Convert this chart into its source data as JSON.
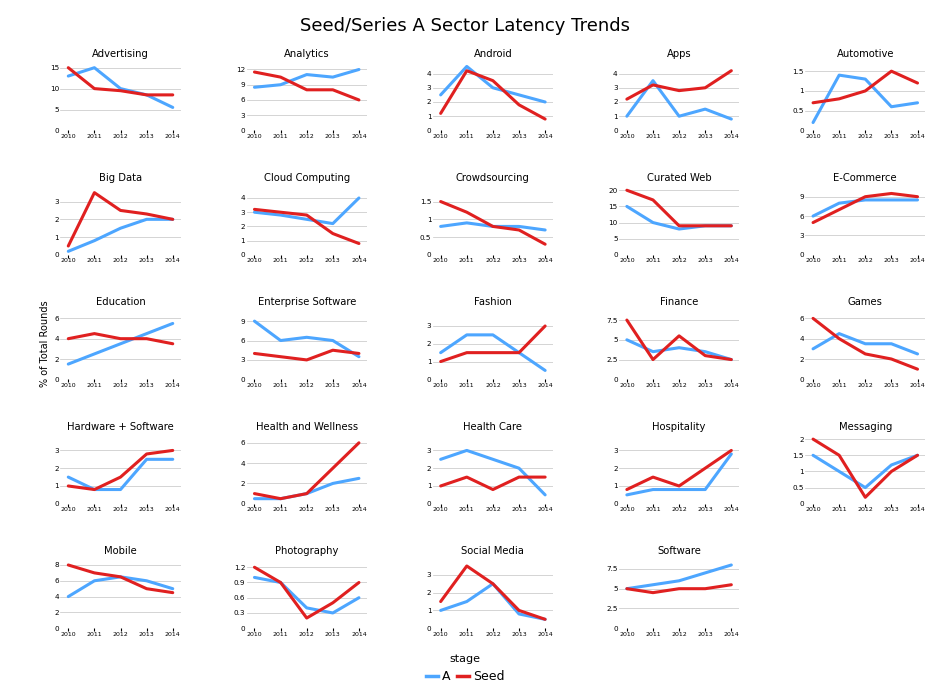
{
  "title": "Seed/Series A Sector Latency Trends",
  "years": [
    2010,
    2011,
    2012,
    2013,
    2014
  ],
  "ylabel": "% of Total Rounds",
  "legend_label_A": "A",
  "legend_label_Seed": "Seed",
  "color_A": "#4da6ff",
  "color_Seed": "#e02020",
  "background_color": "#ffffff",
  "series": {
    "Advertising": {
      "A": [
        13.0,
        15.0,
        10.0,
        8.5,
        5.5
      ],
      "Seed": [
        15.0,
        10.0,
        9.5,
        8.5,
        8.5
      ]
    },
    "Analytics": {
      "A": [
        8.5,
        9.0,
        11.0,
        10.5,
        12.0
      ],
      "Seed": [
        11.5,
        10.5,
        8.0,
        8.0,
        6.0
      ]
    },
    "Android": {
      "A": [
        2.5,
        4.5,
        3.0,
        2.5,
        2.0
      ],
      "Seed": [
        1.2,
        4.2,
        3.5,
        1.8,
        0.8
      ]
    },
    "Apps": {
      "A": [
        1.0,
        3.5,
        1.0,
        1.5,
        0.8
      ],
      "Seed": [
        2.2,
        3.2,
        2.8,
        3.0,
        4.2
      ]
    },
    "Automotive": {
      "A": [
        0.2,
        1.4,
        1.3,
        0.6,
        0.7
      ],
      "Seed": [
        0.7,
        0.8,
        1.0,
        1.5,
        1.2
      ]
    },
    "Big Data": {
      "A": [
        0.2,
        0.8,
        1.5,
        2.0,
        2.0
      ],
      "Seed": [
        0.5,
        3.5,
        2.5,
        2.3,
        2.0
      ]
    },
    "Cloud Computing": {
      "A": [
        3.0,
        2.8,
        2.5,
        2.2,
        4.0
      ],
      "Seed": [
        3.2,
        3.0,
        2.8,
        1.5,
        0.8
      ]
    },
    "Crowdsourcing": {
      "A": [
        0.8,
        0.9,
        0.8,
        0.8,
        0.7
      ],
      "Seed": [
        1.5,
        1.2,
        0.8,
        0.7,
        0.3
      ]
    },
    "Curated Web": {
      "A": [
        15.0,
        10.0,
        8.0,
        9.0,
        9.0
      ],
      "Seed": [
        20.0,
        17.0,
        9.0,
        9.0,
        9.0
      ]
    },
    "E-Commerce": {
      "A": [
        6.0,
        8.0,
        8.5,
        8.5,
        8.5
      ],
      "Seed": [
        5.0,
        7.0,
        9.0,
        9.5,
        9.0
      ]
    },
    "Education": {
      "A": [
        1.5,
        2.5,
        3.5,
        4.5,
        5.5
      ],
      "Seed": [
        4.0,
        4.5,
        4.0,
        4.0,
        3.5
      ]
    },
    "Enterprise Software": {
      "A": [
        9.0,
        6.0,
        6.5,
        6.0,
        3.5
      ],
      "Seed": [
        4.0,
        3.5,
        3.0,
        4.5,
        4.0
      ]
    },
    "Fashion": {
      "A": [
        1.5,
        2.5,
        2.5,
        1.5,
        0.5
      ],
      "Seed": [
        1.0,
        1.5,
        1.5,
        1.5,
        3.0
      ]
    },
    "Finance": {
      "A": [
        5.0,
        3.5,
        4.0,
        3.5,
        2.5
      ],
      "Seed": [
        7.5,
        2.5,
        5.5,
        3.0,
        2.5
      ]
    },
    "Games": {
      "A": [
        3.0,
        4.5,
        3.5,
        3.5,
        2.5
      ],
      "Seed": [
        6.0,
        4.0,
        2.5,
        2.0,
        1.0
      ]
    },
    "Hardware + Software": {
      "A": [
        1.5,
        0.8,
        0.8,
        2.5,
        2.5
      ],
      "Seed": [
        1.0,
        0.8,
        1.5,
        2.8,
        3.0
      ]
    },
    "Health and Wellness": {
      "A": [
        0.5,
        0.5,
        1.0,
        2.0,
        2.5
      ],
      "Seed": [
        1.0,
        0.5,
        1.0,
        3.5,
        6.0
      ]
    },
    "Health Care": {
      "A": [
        2.5,
        3.0,
        2.5,
        2.0,
        0.5
      ],
      "Seed": [
        1.0,
        1.5,
        0.8,
        1.5,
        1.5
      ]
    },
    "Hospitality": {
      "A": [
        0.5,
        0.8,
        0.8,
        0.8,
        2.8
      ],
      "Seed": [
        0.8,
        1.5,
        1.0,
        2.0,
        3.0
      ]
    },
    "Messaging": {
      "A": [
        1.5,
        1.0,
        0.5,
        1.2,
        1.5
      ],
      "Seed": [
        2.0,
        1.5,
        0.2,
        1.0,
        1.5
      ]
    },
    "Mobile": {
      "A": [
        4.0,
        6.0,
        6.5,
        6.0,
        5.0
      ],
      "Seed": [
        8.0,
        7.0,
        6.5,
        5.0,
        4.5
      ]
    },
    "Photography": {
      "A": [
        1.0,
        0.9,
        0.4,
        0.3,
        0.6
      ],
      "Seed": [
        1.2,
        0.9,
        0.2,
        0.5,
        0.9
      ]
    },
    "Social Media": {
      "A": [
        1.0,
        1.5,
        2.5,
        0.8,
        0.5
      ],
      "Seed": [
        1.5,
        3.5,
        2.5,
        1.0,
        0.5
      ]
    },
    "Software": {
      "A": [
        5.0,
        5.5,
        6.0,
        7.0,
        8.0
      ],
      "Seed": [
        5.0,
        4.5,
        5.0,
        5.0,
        5.5
      ]
    }
  },
  "layout": [
    [
      "Advertising",
      "Analytics",
      "Android",
      "Apps",
      "Automotive"
    ],
    [
      "Big Data",
      "Cloud Computing",
      "Crowdsourcing",
      "Curated Web",
      "E-Commerce"
    ],
    [
      "Education",
      "Enterprise Software",
      "Fashion",
      "Finance",
      "Games"
    ],
    [
      "Hardware + Software",
      "Health and Wellness",
      "Health Care",
      "Hospitality",
      "Messaging"
    ],
    [
      "Mobile",
      "Photography",
      "Social Media",
      "Software",
      null
    ]
  ],
  "yticks": {
    "Advertising": [
      0,
      5,
      10,
      15
    ],
    "Analytics": [
      0,
      3,
      6,
      9,
      12
    ],
    "Android": [
      0,
      1,
      2,
      3,
      4
    ],
    "Apps": [
      0,
      1,
      2,
      3,
      4
    ],
    "Automotive": [
      0.0,
      0.5,
      1.0,
      1.5
    ],
    "Big Data": [
      0,
      1,
      2,
      3
    ],
    "Cloud Computing": [
      0,
      1,
      2,
      3,
      4
    ],
    "Crowdsourcing": [
      0.0,
      0.5,
      1.0,
      1.5
    ],
    "Curated Web": [
      0,
      5,
      10,
      15,
      20
    ],
    "E-Commerce": [
      0,
      3,
      6,
      9
    ],
    "Education": [
      0,
      2,
      4,
      6
    ],
    "Enterprise Software": [
      0,
      3,
      6,
      9
    ],
    "Fashion": [
      0,
      1,
      2,
      3
    ],
    "Finance": [
      0.0,
      2.5,
      5.0,
      7.5
    ],
    "Games": [
      0,
      2,
      4,
      6
    ],
    "Hardware + Software": [
      0,
      1,
      2,
      3
    ],
    "Health and Wellness": [
      0,
      2,
      4,
      6
    ],
    "Health Care": [
      0,
      1,
      2,
      3
    ],
    "Hospitality": [
      0,
      1,
      2,
      3
    ],
    "Messaging": [
      0.0,
      0.5,
      1.0,
      1.5,
      2.0
    ],
    "Mobile": [
      0,
      2,
      4,
      6,
      8
    ],
    "Photography": [
      0.0,
      0.3,
      0.6,
      0.9,
      1.2
    ],
    "Social Media": [
      0,
      1,
      2,
      3
    ],
    "Software": [
      0.0,
      2.5,
      5.0,
      7.5
    ],
    "null": null
  },
  "ylims": {
    "Advertising": [
      0,
      17
    ],
    "Analytics": [
      0,
      14
    ],
    "Android": [
      0,
      5
    ],
    "Apps": [
      0,
      5
    ],
    "Automotive": [
      0.0,
      1.8
    ],
    "Big Data": [
      0,
      4
    ],
    "Cloud Computing": [
      0,
      5
    ],
    "Crowdsourcing": [
      0.0,
      2.0
    ],
    "Curated Web": [
      0,
      22
    ],
    "E-Commerce": [
      0,
      11
    ],
    "Education": [
      0,
      7
    ],
    "Enterprise Software": [
      0,
      11
    ],
    "Fashion": [
      0,
      4
    ],
    "Finance": [
      0.0,
      9.0
    ],
    "Games": [
      0,
      7
    ],
    "Hardware + Software": [
      0,
      4
    ],
    "Health and Wellness": [
      0,
      7
    ],
    "Health Care": [
      0,
      4
    ],
    "Hospitality": [
      0,
      4
    ],
    "Messaging": [
      0.0,
      2.2
    ],
    "Mobile": [
      0,
      9
    ],
    "Photography": [
      0.0,
      1.4
    ],
    "Social Media": [
      0,
      4
    ],
    "Software": [
      0.0,
      9.0
    ],
    "null": null
  }
}
